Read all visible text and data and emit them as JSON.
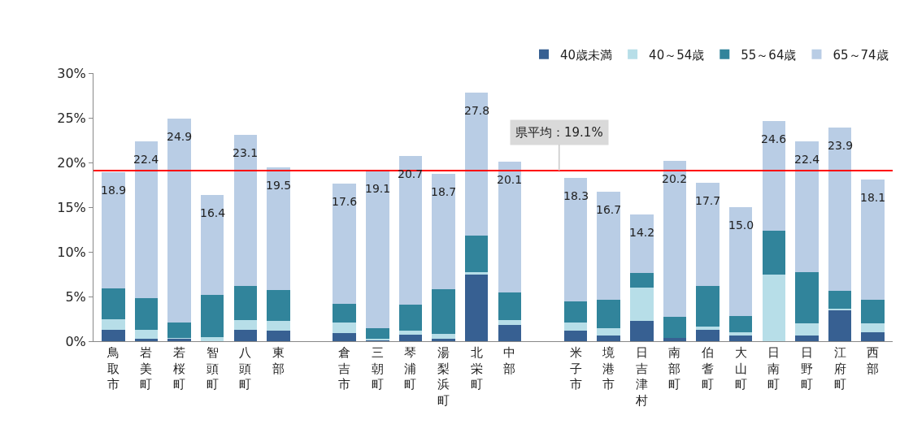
{
  "chart_data": {
    "type": "bar",
    "stacked": true,
    "categories": [
      "鳥取市",
      "岩美町",
      "若桜町",
      "智頭町",
      "八頭町",
      "東部",
      null,
      "倉吉市",
      "三朝町",
      "琴浦町",
      "湯梨浜町",
      "北栄町",
      "中部",
      null,
      "米子市",
      "境港市",
      "日吉津村",
      "南部町",
      "伯耆町",
      "大山町",
      "日南町",
      "日野町",
      "江府町",
      "西部"
    ],
    "series": [
      {
        "name": "40歳未満",
        "color": "#376092",
        "values": [
          1.3,
          0.3,
          0.3,
          null,
          1.3,
          1.2,
          null,
          0.9,
          0.1,
          0.7,
          0.3,
          7.5,
          1.8,
          null,
          1.2,
          0.6,
          2.3,
          0.4,
          1.3,
          0.6,
          null,
          0.6,
          3.5,
          1.0
        ]
      },
      {
        "name": "40～54歳",
        "color": "#b7dee8",
        "values": [
          1.2,
          1.0,
          0.1,
          0.5,
          1.1,
          1.1,
          null,
          1.2,
          0.2,
          0.5,
          0.5,
          0.2,
          0.6,
          null,
          0.9,
          0.9,
          3.7,
          null,
          0.3,
          0.4,
          7.5,
          1.4,
          0.1,
          1.0
        ]
      },
      {
        "name": "55～64歳",
        "color": "#31849b",
        "values": [
          3.4,
          3.5,
          1.7,
          4.7,
          3.8,
          3.4,
          null,
          2.1,
          1.2,
          2.9,
          5.0,
          4.1,
          3.1,
          null,
          2.4,
          3.1,
          1.6,
          2.3,
          4.6,
          1.8,
          4.9,
          5.7,
          2.0,
          2.6
        ]
      },
      {
        "name": "65～74歳",
        "color": "#b9cde5",
        "values": [
          13.0,
          17.6,
          22.8,
          11.2,
          16.9,
          13.8,
          null,
          13.4,
          17.6,
          16.6,
          12.9,
          16.0,
          14.6,
          null,
          13.8,
          12.1,
          6.6,
          17.5,
          11.5,
          12.2,
          12.2,
          14.7,
          18.3,
          13.5
        ]
      }
    ],
    "totals": [
      "18.9",
      "22.4",
      "24.9",
      "16.4",
      "23.1",
      "19.5",
      null,
      "17.6",
      "19.1",
      "20.7",
      "18.7",
      "27.8",
      "20.1",
      null,
      "18.3",
      "16.7",
      "14.2",
      "20.2",
      "17.7",
      "15.0",
      "24.6",
      "22.4",
      "23.9",
      "18.1"
    ],
    "ylim": [
      0,
      30
    ],
    "yticks": [
      {
        "value": 0,
        "label": "0%"
      },
      {
        "value": 5,
        "label": "5%"
      },
      {
        "value": 10,
        "label": "10%"
      },
      {
        "value": 15,
        "label": "15%"
      },
      {
        "value": 20,
        "label": "20%"
      },
      {
        "value": 25,
        "label": "25%"
      },
      {
        "value": 30,
        "label": "30%"
      }
    ],
    "ref_lines": [
      {
        "axis": "y",
        "value": 19.1,
        "label": "県平均：19.1%",
        "color": "#ff0000"
      }
    ],
    "legend": "top right"
  }
}
